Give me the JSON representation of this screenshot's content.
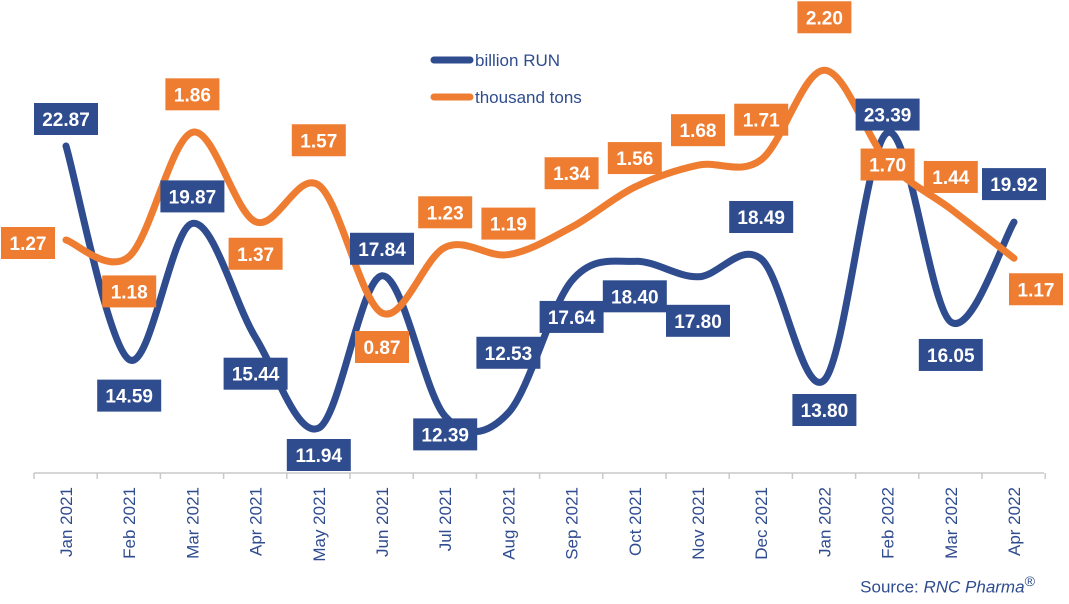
{
  "chart_data": {
    "type": "line",
    "categories": [
      "Jan 2021",
      "Feb 2021",
      "Mar 2021",
      "Apr 2021",
      "May 2021",
      "Jun 2021",
      "Jul 2021",
      "Aug 2021",
      "Sep 2021",
      "Oct 2021",
      "Nov 2021",
      "Dec 2021",
      "Jan 2022",
      "Feb 2022",
      "Mar 2022",
      "Apr 2022"
    ],
    "series": [
      {
        "name": "billion RUN",
        "color": "#2f4c8f",
        "values": [
          22.87,
          14.59,
          19.87,
          15.44,
          11.94,
          17.84,
          12.39,
          12.53,
          17.64,
          18.4,
          17.8,
          18.49,
          13.8,
          23.39,
          16.05,
          19.92
        ],
        "labels": [
          "22.87",
          "14.59",
          "19.87",
          "15.44",
          "11.94",
          "17.84",
          "12.39",
          "12.53",
          "17.64",
          "18.40",
          "17.80",
          "18.49",
          "13.80",
          "23.39",
          "16.05",
          "19.92"
        ]
      },
      {
        "name": "thousand tons",
        "color": "#ee7d31",
        "values": [
          1.27,
          1.18,
          1.86,
          1.37,
          1.57,
          0.87,
          1.23,
          1.19,
          1.34,
          1.56,
          1.68,
          1.71,
          2.2,
          1.7,
          1.44,
          1.17
        ],
        "labels": [
          "1.27",
          "1.18",
          "1.86",
          "1.37",
          "1.57",
          "0.87",
          "1.23",
          "1.19",
          "1.34",
          "1.56",
          "1.68",
          "1.71",
          "2.20",
          "1.70",
          "1.44",
          "1.17"
        ]
      }
    ],
    "legend_position": "top-center",
    "grid": false
  },
  "source": {
    "prefix": "Source: ",
    "name": "RNC Pharma",
    "mark": "®"
  }
}
